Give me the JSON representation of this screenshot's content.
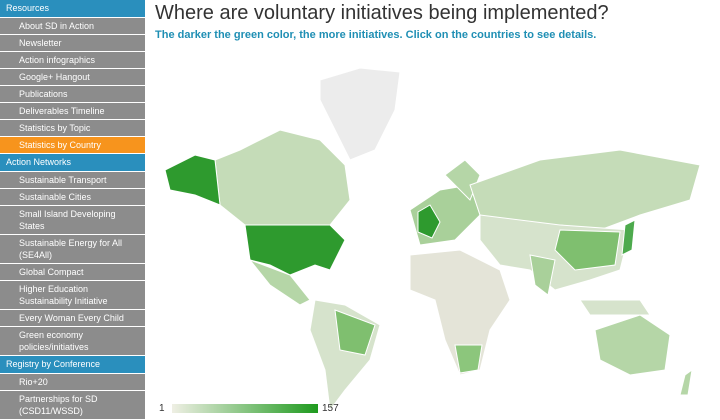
{
  "sidebar": [
    {
      "title": "Resources",
      "items": [
        {
          "label": "About SD in Action"
        },
        {
          "label": "Newsletter"
        },
        {
          "label": "Action infographics"
        },
        {
          "label": "Google+ Hangout"
        },
        {
          "label": "Publications"
        },
        {
          "label": "Deliverables Timeline"
        },
        {
          "label": "Statistics by Topic"
        },
        {
          "label": "Statistics by Country",
          "selected": true
        }
      ]
    },
    {
      "title": "Action Networks",
      "items": [
        {
          "label": "Sustainable Transport"
        },
        {
          "label": "Sustainable Cities"
        },
        {
          "label": "Small Island Developing States"
        },
        {
          "label": "Sustainable Energy for All (SE4All)"
        },
        {
          "label": "Global Compact"
        },
        {
          "label": "Higher Education Sustainability Initiative"
        },
        {
          "label": "Every Woman Every Child"
        },
        {
          "label": "Green economy policies/initiatives"
        }
      ]
    },
    {
      "title": "Registry by Conference",
      "items": [
        {
          "label": "Rio+20"
        },
        {
          "label": "Partnerships for SD (CSD11/WSSD)"
        }
      ]
    }
  ],
  "header": {
    "title": "Where are voluntary initiatives being implemented?",
    "subtitle": "The darker the green color, the more initiatives. Click on the countries to see details."
  },
  "legend": {
    "min": "1",
    "max": "157"
  }
}
